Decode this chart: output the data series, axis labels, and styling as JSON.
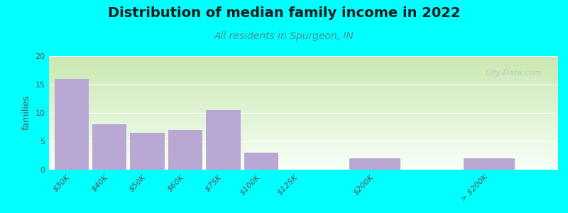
{
  "title": "Distribution of median family income in 2022",
  "subtitle": "All residents in Spurgeon, IN",
  "ylabel": "families",
  "categories": [
    "$30K",
    "$40K",
    "$50K",
    "$60K",
    "$75K",
    "$100K",
    "$125K",
    "$200K",
    "> $200K"
  ],
  "values": [
    16,
    8,
    6.5,
    7,
    10.5,
    3,
    0,
    2,
    2
  ],
  "bar_color": "#b9a8d4",
  "title_fontsize": 14,
  "subtitle_fontsize": 10,
  "subtitle_color": "#4a9090",
  "ylabel_fontsize": 9,
  "tick_fontsize": 8,
  "ylim": [
    0,
    20
  ],
  "yticks": [
    0,
    5,
    10,
    15,
    20
  ],
  "watermark": "City-Data.com",
  "fig_bg_color": "#00FFFF",
  "plot_bg_top_color": "#c8e8b0",
  "plot_bg_bottom_color": "#f8fff8",
  "x_positions": [
    0,
    1,
    2,
    3,
    4,
    5,
    6,
    8,
    11
  ],
  "bar_widths": [
    1.0,
    1.0,
    1.0,
    1.0,
    1.0,
    1.0,
    1.0,
    1.5,
    1.5
  ]
}
